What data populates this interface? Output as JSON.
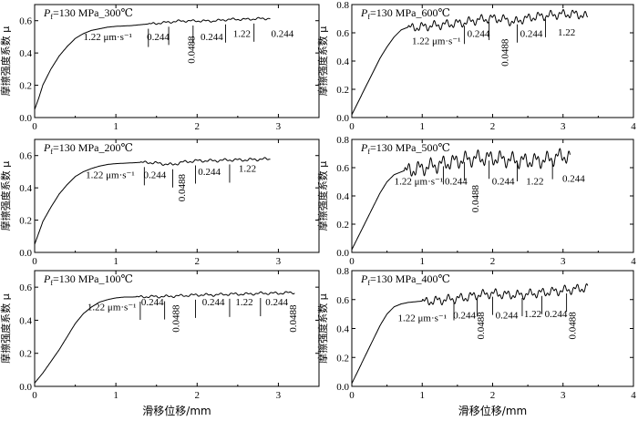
{
  "chart_data": [
    {
      "type": "line",
      "title": "Pf=130 MPa_300℃",
      "title_main": "P",
      "title_sub": "f",
      "title_rest": "=130 MPa_300℃",
      "xlabel": "",
      "ylabel": "摩擦强度系数 μ",
      "xlim": [
        0,
        3.5
      ],
      "ylim": [
        0,
        0.7
      ],
      "xticks": [
        "0",
        "1",
        "2",
        "3"
      ],
      "yticks": [
        "0.0",
        "0.2",
        "0.4",
        "0.6"
      ],
      "x": [
        0,
        0.05,
        0.1,
        0.2,
        0.3,
        0.4,
        0.5,
        0.6,
        0.7,
        0.8,
        0.9,
        1.0,
        1.2,
        1.4,
        1.6,
        1.8,
        2.0,
        2.2,
        2.4,
        2.6,
        2.8,
        2.9
      ],
      "y": [
        0.05,
        0.12,
        0.2,
        0.3,
        0.38,
        0.44,
        0.49,
        0.52,
        0.54,
        0.55,
        0.56,
        0.565,
        0.57,
        0.58,
        0.59,
        0.6,
        0.6,
        0.6,
        0.61,
        0.61,
        0.615,
        0.615
      ],
      "noise_from": 1.4,
      "noise_amp": 0.008,
      "separators": [
        1.4,
        1.65,
        1.95,
        2.35,
        2.7
      ],
      "annotations": [
        {
          "text": "1.22 μm·s⁻¹",
          "x": 0.9,
          "y": 0.48,
          "rot": false
        },
        {
          "text": "0.244",
          "x": 1.52,
          "y": 0.48,
          "rot": false
        },
        {
          "text": "0.0488",
          "x": 1.97,
          "y": 0.42,
          "rot": true
        },
        {
          "text": "0.244",
          "x": 2.18,
          "y": 0.48,
          "rot": false
        },
        {
          "text": "1.22",
          "x": 2.55,
          "y": 0.5,
          "rot": false
        },
        {
          "text": "0.244",
          "x": 3.05,
          "y": 0.5,
          "rot": false
        }
      ]
    },
    {
      "type": "line",
      "title": "Pf=130 MPa_600℃",
      "title_main": "P",
      "title_sub": "f",
      "title_rest": "=130 MPa_600℃",
      "xlabel": "",
      "ylabel": "摩擦强度系数 μ",
      "xlim": [
        0,
        4
      ],
      "ylim": [
        0,
        0.8
      ],
      "xticks": [
        "0",
        "1",
        "2",
        "3",
        "4"
      ],
      "yticks": [
        "0.0",
        "0.2",
        "0.4",
        "0.6",
        "0.8"
      ],
      "x": [
        0,
        0.1,
        0.2,
        0.3,
        0.4,
        0.5,
        0.6,
        0.7,
        0.8,
        1.0,
        1.2,
        1.4,
        1.6,
        1.8,
        2.0,
        2.2,
        2.3,
        2.4,
        2.6,
        2.8,
        3.0,
        3.2,
        3.35
      ],
      "y": [
        0.02,
        0.12,
        0.22,
        0.32,
        0.42,
        0.5,
        0.57,
        0.62,
        0.64,
        0.65,
        0.66,
        0.67,
        0.68,
        0.7,
        0.71,
        0.7,
        0.68,
        0.7,
        0.72,
        0.73,
        0.74,
        0.74,
        0.72
      ],
      "noise_from": 0.8,
      "noise_amp": 0.035,
      "separators": [
        1.6,
        1.95,
        2.35,
        2.75
      ],
      "annotations": [
        {
          "text": "1.22 μm·s⁻¹",
          "x": 1.2,
          "y": 0.52,
          "rot": false
        },
        {
          "text": "0.244",
          "x": 1.8,
          "y": 0.57,
          "rot": false
        },
        {
          "text": "0.0488",
          "x": 2.22,
          "y": 0.46,
          "rot": true
        },
        {
          "text": "0.244",
          "x": 2.55,
          "y": 0.57,
          "rot": false
        },
        {
          "text": "1.22",
          "x": 3.05,
          "y": 0.58,
          "rot": false
        }
      ]
    },
    {
      "type": "line",
      "title": "Pf=130 MPa_200℃",
      "title_main": "P",
      "title_sub": "f",
      "title_rest": "=130 MPa_200℃",
      "xlabel": "",
      "ylabel": "摩擦强度系数 μ",
      "xlim": [
        0,
        3.5
      ],
      "ylim": [
        0,
        0.7
      ],
      "xticks": [
        "0",
        "1",
        "2",
        "3"
      ],
      "yticks": [
        "0.0",
        "0.2",
        "0.4",
        "0.6"
      ],
      "x": [
        0,
        0.05,
        0.1,
        0.2,
        0.3,
        0.4,
        0.5,
        0.6,
        0.7,
        0.8,
        0.9,
        1.0,
        1.2,
        1.4,
        1.6,
        1.7,
        1.8,
        2.0,
        2.2,
        2.4,
        2.6,
        2.8,
        2.9
      ],
      "y": [
        0.05,
        0.12,
        0.19,
        0.28,
        0.36,
        0.42,
        0.47,
        0.5,
        0.52,
        0.535,
        0.545,
        0.55,
        0.555,
        0.56,
        0.55,
        0.545,
        0.56,
        0.57,
        0.57,
        0.575,
        0.575,
        0.58,
        0.58
      ],
      "noise_from": 1.3,
      "noise_amp": 0.01,
      "separators": [
        1.35,
        1.7,
        1.98,
        2.4
      ],
      "annotations": [
        {
          "text": "1.22 μm·s⁻¹",
          "x": 0.93,
          "y": 0.46,
          "rot": false
        },
        {
          "text": "0.244",
          "x": 1.48,
          "y": 0.46,
          "rot": false
        },
        {
          "text": "0.0488",
          "x": 1.85,
          "y": 0.4,
          "rot": true
        },
        {
          "text": "0.244",
          "x": 2.15,
          "y": 0.48,
          "rot": false
        },
        {
          "text": "1.22",
          "x": 2.62,
          "y": 0.5,
          "rot": false
        }
      ]
    },
    {
      "type": "line",
      "title": "Pf=130 MPa_500℃",
      "title_main": "P",
      "title_sub": "f",
      "title_rest": "=130 MPa_500℃",
      "xlabel": "",
      "ylabel": "摩擦强度系数 μ",
      "xlim": [
        0,
        4
      ],
      "ylim": [
        0,
        0.8
      ],
      "xticks": [
        "0",
        "1",
        "2",
        "3",
        "4"
      ],
      "yticks": [
        "0.0",
        "0.2",
        "0.4",
        "0.6",
        "0.8"
      ],
      "x": [
        0,
        0.1,
        0.2,
        0.3,
        0.4,
        0.5,
        0.6,
        0.7,
        0.8,
        1.0,
        1.2,
        1.4,
        1.6,
        1.8,
        2.0,
        2.2,
        2.4,
        2.6,
        2.8,
        3.0,
        3.1
      ],
      "y": [
        0.02,
        0.12,
        0.22,
        0.32,
        0.42,
        0.5,
        0.55,
        0.57,
        0.59,
        0.61,
        0.63,
        0.65,
        0.67,
        0.68,
        0.68,
        0.67,
        0.66,
        0.66,
        0.67,
        0.7,
        0.68
      ],
      "noise_from": 0.75,
      "noise_amp": 0.06,
      "separators": [
        1.3,
        1.6,
        1.95,
        2.35,
        2.85
      ],
      "annotations": [
        {
          "text": "1.22 μm·s⁻¹",
          "x": 0.95,
          "y": 0.48,
          "rot": false
        },
        {
          "text": "0.244",
          "x": 1.48,
          "y": 0.48,
          "rot": false
        },
        {
          "text": "0.0488",
          "x": 1.8,
          "y": 0.38,
          "rot": true
        },
        {
          "text": "0.244",
          "x": 2.15,
          "y": 0.48,
          "rot": false
        },
        {
          "text": "1.22",
          "x": 2.6,
          "y": 0.48,
          "rot": false
        },
        {
          "text": "0.244",
          "x": 3.15,
          "y": 0.5,
          "rot": false
        }
      ]
    },
    {
      "type": "line",
      "title": "Pf=130 MPa_100℃",
      "title_main": "P",
      "title_sub": "f",
      "title_rest": "=130 MPa_100℃",
      "xlabel": "滑移位移/mm",
      "ylabel": "摩擦强度系数 μ",
      "xlim": [
        0,
        3.5
      ],
      "ylim": [
        0,
        0.7
      ],
      "xticks": [
        "0",
        "1",
        "2",
        "3"
      ],
      "yticks": [
        "0.0",
        "0.2",
        "0.4",
        "0.6"
      ],
      "x": [
        0,
        0.1,
        0.2,
        0.3,
        0.4,
        0.5,
        0.6,
        0.7,
        0.8,
        0.9,
        1.0,
        1.1,
        1.2,
        1.4,
        1.6,
        1.8,
        2.0,
        2.2,
        2.4,
        2.6,
        2.8,
        3.0,
        3.2
      ],
      "y": [
        0.02,
        0.08,
        0.15,
        0.22,
        0.3,
        0.38,
        0.44,
        0.48,
        0.51,
        0.525,
        0.535,
        0.54,
        0.54,
        0.545,
        0.545,
        0.55,
        0.555,
        0.555,
        0.56,
        0.56,
        0.565,
        0.565,
        0.57
      ],
      "noise_from": 1.25,
      "noise_amp": 0.009,
      "separators": [
        1.3,
        1.6,
        1.98,
        2.4,
        2.78
      ],
      "annotations": [
        {
          "text": "1.22 μm·s⁻¹",
          "x": 0.95,
          "y": 0.46,
          "rot": false
        },
        {
          "text": "0.244",
          "x": 1.45,
          "y": 0.49,
          "rot": false
        },
        {
          "text": "0.0488",
          "x": 1.78,
          "y": 0.41,
          "rot": true
        },
        {
          "text": "0.244",
          "x": 2.2,
          "y": 0.49,
          "rot": false
        },
        {
          "text": "1.22",
          "x": 2.58,
          "y": 0.49,
          "rot": false
        },
        {
          "text": "0.244",
          "x": 2.98,
          "y": 0.49,
          "rot": false
        },
        {
          "text": "0.0488",
          "x": 3.22,
          "y": 0.41,
          "rot": true
        }
      ]
    },
    {
      "type": "line",
      "title": "Pf=130 MPa_400℃",
      "title_main": "P",
      "title_sub": "f",
      "title_rest": "=130 MPa_400℃",
      "xlabel": "滑移位移/mm",
      "ylabel": "摩擦强度系数 μ",
      "xlim": [
        0,
        4
      ],
      "ylim": [
        0,
        0.8
      ],
      "xticks": [
        "0",
        "1",
        "2",
        "3",
        "4"
      ],
      "yticks": [
        "0.0",
        "0.2",
        "0.4",
        "0.6",
        "0.8"
      ],
      "x": [
        0,
        0.1,
        0.2,
        0.3,
        0.4,
        0.5,
        0.6,
        0.7,
        0.8,
        1.0,
        1.2,
        1.4,
        1.6,
        1.8,
        2.0,
        2.2,
        2.4,
        2.6,
        2.8,
        3.0,
        3.2,
        3.35
      ],
      "y": [
        0.02,
        0.12,
        0.22,
        0.32,
        0.42,
        0.5,
        0.55,
        0.57,
        0.58,
        0.59,
        0.6,
        0.61,
        0.62,
        0.64,
        0.65,
        0.64,
        0.64,
        0.65,
        0.66,
        0.67,
        0.68,
        0.69
      ],
      "noise_from": 1.0,
      "noise_amp": 0.035,
      "separators": [
        1.45,
        1.78,
        2.0,
        2.42,
        2.7,
        3.05
      ],
      "annotations": [
        {
          "text": "1.22 μm·s⁻¹",
          "x": 1.0,
          "y": 0.45,
          "rot": false
        },
        {
          "text": "0.244",
          "x": 1.6,
          "y": 0.47,
          "rot": false
        },
        {
          "text": "0.0488",
          "x": 1.88,
          "y": 0.42,
          "rot": true
        },
        {
          "text": "0.244",
          "x": 2.2,
          "y": 0.47,
          "rot": false
        },
        {
          "text": "1.22",
          "x": 2.57,
          "y": 0.48,
          "rot": false
        },
        {
          "text": "0.244",
          "x": 2.9,
          "y": 0.48,
          "rot": false
        },
        {
          "text": "0.0488",
          "x": 3.18,
          "y": 0.42,
          "rot": true
        }
      ]
    }
  ]
}
